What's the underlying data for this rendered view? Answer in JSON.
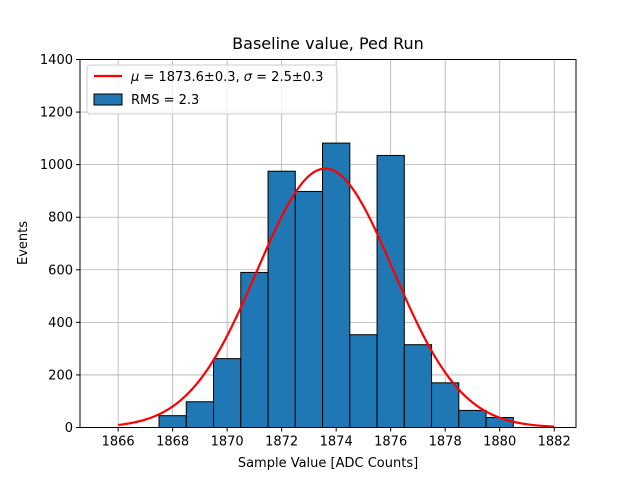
{
  "chart_data": {
    "type": "bar",
    "title": "Baseline value, Ped Run",
    "xlabel": "Sample Value [ADC Counts]",
    "ylabel": "Events",
    "xlim": [
      1864.6,
      1882.8
    ],
    "ylim": [
      0,
      1400
    ],
    "grid": true,
    "legend_position": "top-left",
    "x_ticks": [
      1866,
      1868,
      1870,
      1872,
      1874,
      1876,
      1878,
      1880,
      1882
    ],
    "y_ticks": [
      0,
      200,
      400,
      600,
      800,
      1000,
      1200,
      1400
    ],
    "histogram": {
      "name": "RMS = 2.3",
      "color": "#1f77b4",
      "edge_color": "#000000",
      "bin_width": 1,
      "bin_lefts": [
        1867.5,
        1868.5,
        1869.5,
        1870.5,
        1871.5,
        1872.5,
        1873.5,
        1874.5,
        1875.5,
        1876.5,
        1877.5,
        1878.5,
        1879.5
      ],
      "counts": [
        45,
        98,
        262,
        590,
        975,
        898,
        1082,
        353,
        1035,
        315,
        170,
        65,
        38
      ]
    },
    "fit": {
      "name": "μ = 1873.6±0.3, σ = 2.5±0.3",
      "legend_math": "μ",
      "legend_rest1": " = 1873.6±0.3, ",
      "legend_math2": "σ",
      "legend_rest2": " = 2.5±0.3",
      "color": "#ff0000",
      "mu": 1873.6,
      "sigma": 2.5,
      "amplitude": 985,
      "x_range": [
        1866,
        1882
      ]
    },
    "legend_hist_label": "RMS = 2.3"
  }
}
